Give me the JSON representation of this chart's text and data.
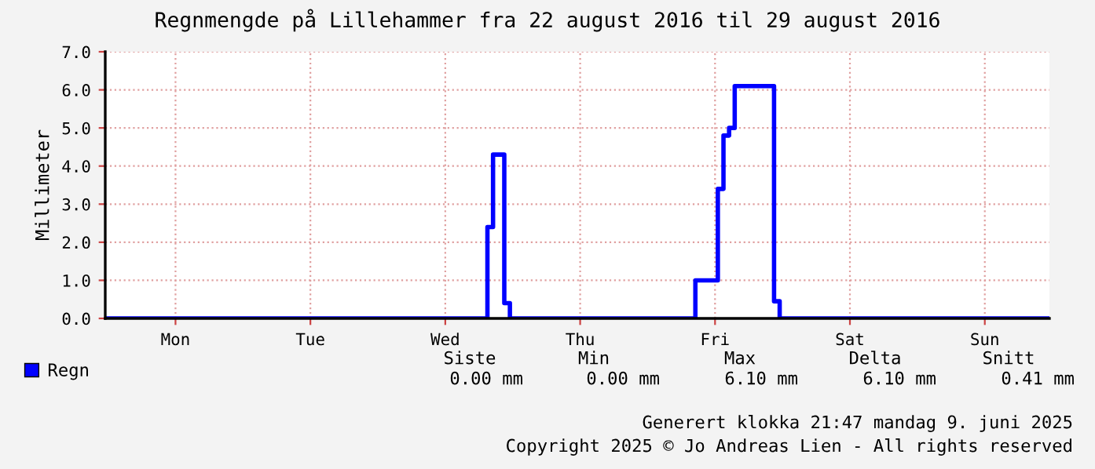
{
  "chart_data": {
    "type": "step",
    "title": "Regnmengde på Lillehammer fra 22 august 2016 til 29 august 2016",
    "ylabel": "Millimeter",
    "categories": [
      null,
      null,
      null,
      null,
      null,
      null,
      null,
      null,
      null,
      null,
      null,
      null,
      "Mon",
      null,
      null,
      null,
      null,
      null,
      null,
      null,
      null,
      null,
      null,
      null,
      null,
      null,
      null,
      null,
      null,
      null,
      null,
      null,
      null,
      null,
      null,
      null,
      "Tue",
      null,
      null,
      null,
      null,
      null,
      null,
      null,
      null,
      null,
      null,
      null,
      null,
      null,
      null,
      null,
      null,
      null,
      null,
      null,
      null,
      null,
      null,
      null,
      "Wed",
      null,
      null,
      null,
      null,
      null,
      null,
      null,
      null,
      null,
      null,
      null,
      null,
      null,
      null,
      null,
      null,
      null,
      null,
      null,
      null,
      null,
      null,
      null,
      "Thu",
      null,
      null,
      null,
      null,
      null,
      null,
      null,
      null,
      null,
      null,
      null,
      null,
      null,
      null,
      null,
      null,
      null,
      null,
      null,
      null,
      null,
      null,
      null,
      "Fri",
      null,
      null,
      null,
      null,
      null,
      null,
      null,
      null,
      null,
      null,
      null,
      null,
      null,
      null,
      null,
      null,
      null,
      null,
      null,
      null,
      null,
      null,
      null,
      "Sat",
      null,
      null,
      null,
      null,
      null,
      null,
      null,
      null,
      null,
      null,
      null,
      null,
      null,
      null,
      null,
      null,
      null,
      null,
      null,
      null,
      null,
      null,
      null,
      "Sun",
      null,
      null,
      null,
      null,
      null,
      null,
      null,
      null,
      null,
      null,
      null
    ],
    "series": [
      {
        "name": "Regn",
        "color": "#0000ff",
        "values": [
          0,
          0,
          0,
          0,
          0,
          0,
          0,
          0,
          0,
          0,
          0,
          0,
          0,
          0,
          0,
          0,
          0,
          0,
          0,
          0,
          0,
          0,
          0,
          0,
          0,
          0,
          0,
          0,
          0,
          0,
          0,
          0,
          0,
          0,
          0,
          0,
          0,
          0,
          0,
          0,
          0,
          0,
          0,
          0,
          0,
          0,
          0,
          0,
          0,
          0,
          0,
          0,
          0,
          0,
          0,
          0,
          0,
          0,
          0,
          0,
          0,
          0,
          0,
          0,
          0,
          0,
          0,
          0,
          2.4,
          4.3,
          4.3,
          0.4,
          0,
          0,
          0,
          0,
          0,
          0,
          0,
          0,
          0,
          0,
          0,
          0,
          0,
          0,
          0,
          0,
          0,
          0,
          0,
          0,
          0,
          0,
          0,
          0,
          0,
          0,
          0,
          0,
          0,
          0,
          0,
          0,
          0,
          1.0,
          1.0,
          1.0,
          1.0,
          3.4,
          4.8,
          5.0,
          6.1,
          6.1,
          6.1,
          6.1,
          6.1,
          6.1,
          6.1,
          0.45,
          0,
          0,
          0,
          0,
          0,
          0,
          0,
          0,
          0,
          0,
          0,
          0,
          0,
          0,
          0,
          0,
          0,
          0,
          0,
          0,
          0,
          0,
          0,
          0,
          0,
          0,
          0,
          0,
          0,
          0,
          0,
          0,
          0,
          0,
          0,
          0,
          0,
          0,
          0,
          0,
          0,
          0,
          0,
          0,
          0,
          0,
          0,
          0
        ]
      }
    ],
    "ylim": [
      0,
      7
    ],
    "yticks": [
      {
        "value": 0,
        "label": "0.0"
      },
      {
        "value": 1,
        "label": "1.0"
      },
      {
        "value": 2,
        "label": "2.0"
      },
      {
        "value": 3,
        "label": "3.0"
      },
      {
        "value": 4,
        "label": "4.0"
      },
      {
        "value": 5,
        "label": "5.0"
      },
      {
        "value": 6,
        "label": "6.0"
      },
      {
        "value": 7,
        "label": "7.0"
      }
    ],
    "grid": true,
    "legend": "bottom left",
    "line_style": "solid",
    "annotations": [
      "Siste",
      "Min",
      "Max",
      "Delta",
      "Snitt",
      "0.00 mm",
      "0.00 mm",
      "6.10 mm",
      "6.10 mm",
      "0.41 mm",
      "Generert klokka 21:47 mandag 9. juni 2025",
      "Copyright 2025 © Jo Andreas Lien - All rights reserved"
    ]
  }
}
